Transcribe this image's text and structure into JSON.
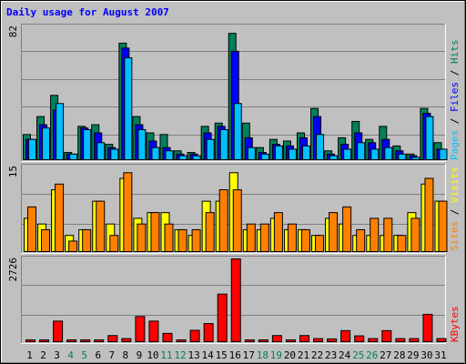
{
  "colors": {
    "background": "#c0c0c0",
    "hits": "#00805c",
    "files": "#0000ff",
    "pages": "#00c0ff",
    "visits": "#ffff00",
    "sites": "#ff8000",
    "kbytes": "#ff0000",
    "title": "#0000ff",
    "weekend_label": "#00805c",
    "weekday_label": "#000000"
  },
  "chart_data": [
    {
      "type": "bar",
      "title": "Daily usage for August 2007",
      "categories": [
        "1",
        "2",
        "3",
        "4",
        "5",
        "6",
        "7",
        "8",
        "9",
        "10",
        "11",
        "12",
        "13",
        "14",
        "15",
        "16",
        "17",
        "18",
        "19",
        "20",
        "21",
        "22",
        "23",
        "24",
        "25",
        "26",
        "27",
        "28",
        "29",
        "30",
        "31"
      ],
      "weekend_days": [
        "4",
        "5",
        "11",
        "12",
        "18",
        "19",
        "25",
        "26"
      ],
      "ylim": [
        0,
        82
      ],
      "ymax_label": "82",
      "ylabel_parts": [
        "Pages",
        "Files",
        "Hits"
      ],
      "series": [
        {
          "name": "Hits",
          "values": [
            16,
            27,
            40,
            5,
            21,
            22,
            10,
            72,
            27,
            17,
            16,
            6,
            5,
            21,
            23,
            78,
            23,
            8,
            13,
            12,
            17,
            32,
            6,
            14,
            24,
            13,
            21,
            9,
            4,
            32,
            11
          ]
        },
        {
          "name": "Files",
          "values": [
            13,
            22,
            31,
            4,
            20,
            17,
            8,
            69,
            22,
            12,
            8,
            4,
            4,
            17,
            21,
            67,
            14,
            5,
            10,
            9,
            14,
            27,
            4,
            10,
            17,
            11,
            13,
            6,
            3,
            29,
            7
          ]
        },
        {
          "name": "Pages",
          "values": [
            13,
            20,
            35,
            4,
            19,
            11,
            7,
            63,
            19,
            8,
            6,
            3,
            3,
            13,
            19,
            35,
            8,
            4,
            9,
            7,
            9,
            16,
            3,
            7,
            11,
            7,
            8,
            4,
            2,
            27,
            7
          ]
        }
      ]
    },
    {
      "type": "bar",
      "categories": [
        "1",
        "2",
        "3",
        "4",
        "5",
        "6",
        "7",
        "8",
        "9",
        "10",
        "11",
        "12",
        "13",
        "14",
        "15",
        "16",
        "17",
        "18",
        "19",
        "20",
        "21",
        "22",
        "23",
        "24",
        "25",
        "26",
        "27",
        "28",
        "29",
        "30",
        "31"
      ],
      "ylim": [
        0,
        15
      ],
      "ymax_label": "15",
      "ylabel_parts": [
        "Sites",
        "Visits"
      ],
      "series": [
        {
          "name": "Visits",
          "values": [
            6,
            5,
            11,
            3,
            4,
            9,
            5,
            13,
            6,
            7,
            7,
            4,
            3,
            9,
            9,
            14,
            4,
            4,
            6,
            4,
            4,
            3,
            6,
            5,
            3,
            3,
            3,
            3,
            7,
            12,
            9
          ]
        },
        {
          "name": "Sites",
          "values": [
            8,
            4,
            12,
            2,
            4,
            9,
            3,
            14,
            5,
            7,
            5,
            4,
            4,
            7,
            11,
            11,
            5,
            5,
            7,
            5,
            4,
            3,
            7,
            8,
            4,
            6,
            6,
            3,
            6,
            13,
            9
          ]
        }
      ]
    },
    {
      "type": "bar",
      "categories": [
        "1",
        "2",
        "3",
        "4",
        "5",
        "6",
        "7",
        "8",
        "9",
        "10",
        "11",
        "12",
        "13",
        "14",
        "15",
        "16",
        "17",
        "18",
        "19",
        "20",
        "21",
        "22",
        "23",
        "24",
        "25",
        "26",
        "27",
        "28",
        "29",
        "30",
        "31"
      ],
      "ylim": [
        0,
        2726
      ],
      "ymax_label": "2726",
      "ylabel_parts": [
        "KBytes"
      ],
      "series": [
        {
          "name": "KBytes",
          "values": [
            30,
            30,
            700,
            30,
            30,
            30,
            230,
            130,
            850,
            700,
            300,
            30,
            400,
            620,
            1580,
            2726,
            30,
            30,
            230,
            30,
            230,
            130,
            120,
            390,
            220,
            130,
            390,
            130,
            130,
            920,
            130
          ]
        }
      ]
    }
  ]
}
